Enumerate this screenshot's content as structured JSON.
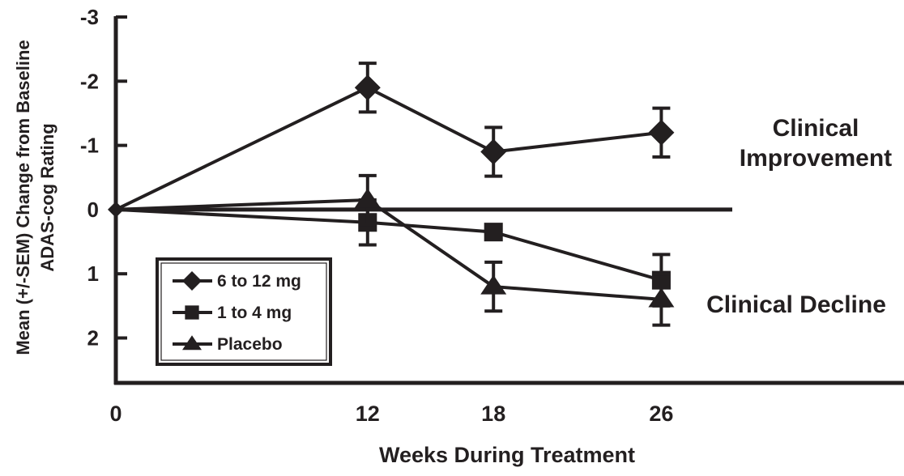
{
  "chart_data": {
    "type": "line",
    "xlabel": "Weeks During Treatment",
    "ylabel": [
      "Mean (+/-SEM) Change from Baseline",
      "ADAS-cog Rating"
    ],
    "x": [
      0,
      12,
      18,
      26
    ],
    "x_ticks": [
      "0",
      "12",
      "18",
      "26"
    ],
    "y_ticks": [
      "-3",
      "-2",
      "-1",
      "0",
      "1",
      "2"
    ],
    "y_tick_values": [
      -3,
      -2,
      -1,
      0,
      1,
      2
    ],
    "ylim": [
      -3,
      2.7
    ],
    "y_inverted": true,
    "reference_line_y": 0,
    "series": [
      {
        "name": "6 to 12 mg",
        "marker": "diamond",
        "values": [
          0,
          -1.9,
          -0.9,
          -1.2
        ],
        "sem": [
          0,
          0.38,
          0.38,
          0.38
        ]
      },
      {
        "name": "1 to 4 mg",
        "marker": "square",
        "values": [
          0,
          0.2,
          0.35,
          1.1
        ],
        "sem": [
          0,
          0.35,
          0,
          0.4
        ]
      },
      {
        "name": "Placebo",
        "marker": "triangle",
        "values": [
          0,
          -0.15,
          1.2,
          1.4
        ],
        "sem": [
          0,
          0.38,
          0.38,
          0.4
        ]
      }
    ],
    "annotations": [
      {
        "text": [
          "Clinical",
          "Improvement"
        ]
      },
      {
        "text": [
          "Clinical Decline"
        ]
      }
    ],
    "legend_position": "bottom-left",
    "grid": false,
    "colors": {
      "ink": "#231f20",
      "background": "#ffffff"
    }
  }
}
